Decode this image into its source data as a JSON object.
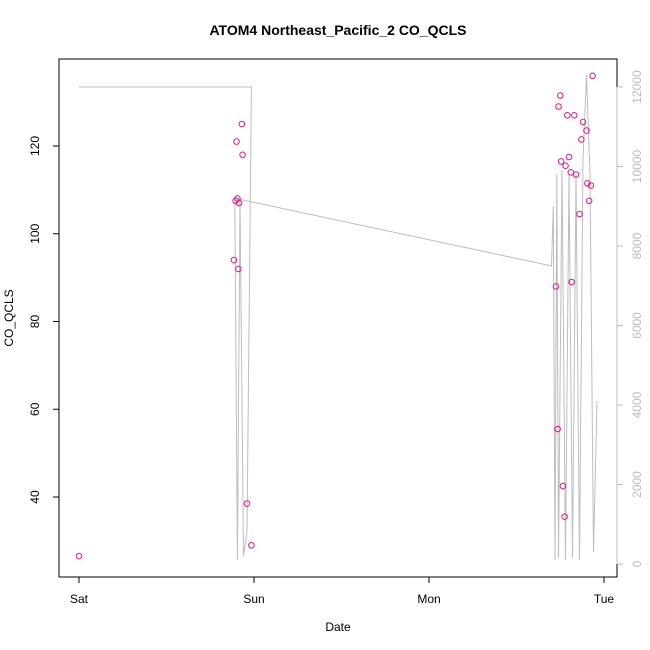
{
  "chart_data": {
    "type": "scatter",
    "title": "ATOM4 Northeast_Pacific_2 CO_QCLS",
    "xlabel": "Date",
    "ylabel": "CO_QCLS",
    "x_unit": "days",
    "xlim": [
      0.0,
      3.0
    ],
    "ylim": [
      25,
      140
    ],
    "x_ticks": [
      {
        "value": 0,
        "label": "Sat"
      },
      {
        "value": 1,
        "label": "Sun"
      },
      {
        "value": 2,
        "label": "Mon"
      },
      {
        "value": 3,
        "label": "Tue"
      }
    ],
    "y_ticks": [
      40,
      60,
      80,
      100,
      120
    ],
    "y2_ticks": [
      0,
      2000,
      4000,
      6000,
      8000,
      10000,
      12000
    ],
    "y2lim": [
      0,
      12000
    ],
    "grid": false,
    "colors": {
      "points": "#e8187a",
      "line": "#bdbdbd",
      "axis": "#000000",
      "right_axis": "#bdbdbd"
    },
    "series": [
      {
        "kind": "points",
        "axis": "left",
        "x": [
          0.0,
          0.885,
          0.895,
          0.9,
          0.905,
          0.91,
          0.915,
          0.93,
          0.935,
          0.96,
          0.985,
          2.725,
          2.735,
          2.74,
          2.75,
          2.755,
          2.765,
          2.775,
          2.78,
          2.79,
          2.8,
          2.81,
          2.815,
          2.83,
          2.84,
          2.86,
          2.87,
          2.88,
          2.9,
          2.905,
          2.915,
          2.925,
          2.935
        ],
        "y": [
          26.5,
          94,
          107.5,
          121,
          108,
          92,
          107,
          125,
          118,
          38.5,
          29,
          88,
          55.5,
          129,
          131.5,
          116.5,
          42.5,
          35.5,
          115.5,
          127,
          117.5,
          114,
          89,
          127,
          113.5,
          104.5,
          121.5,
          125.5,
          123.5,
          111.5,
          107.5,
          111,
          136
        ]
      },
      {
        "kind": "line",
        "axis": "right",
        "x": [
          0.0,
          0.975,
          0.985,
          0.96,
          0.94,
          0.92,
          0.905,
          0.89,
          2.7,
          2.71,
          2.72,
          2.73,
          2.74,
          2.76,
          2.78,
          2.8,
          2.82,
          2.84,
          2.86,
          2.88,
          2.9,
          2.92,
          2.94,
          2.96
        ],
        "y": [
          12000,
          12000,
          12000,
          800,
          200,
          9200,
          100,
          9200,
          7500,
          9000,
          100,
          9800,
          150,
          9900,
          100,
          9800,
          150,
          9800,
          100,
          10200,
          12300,
          9800,
          300,
          4100
        ]
      }
    ]
  }
}
